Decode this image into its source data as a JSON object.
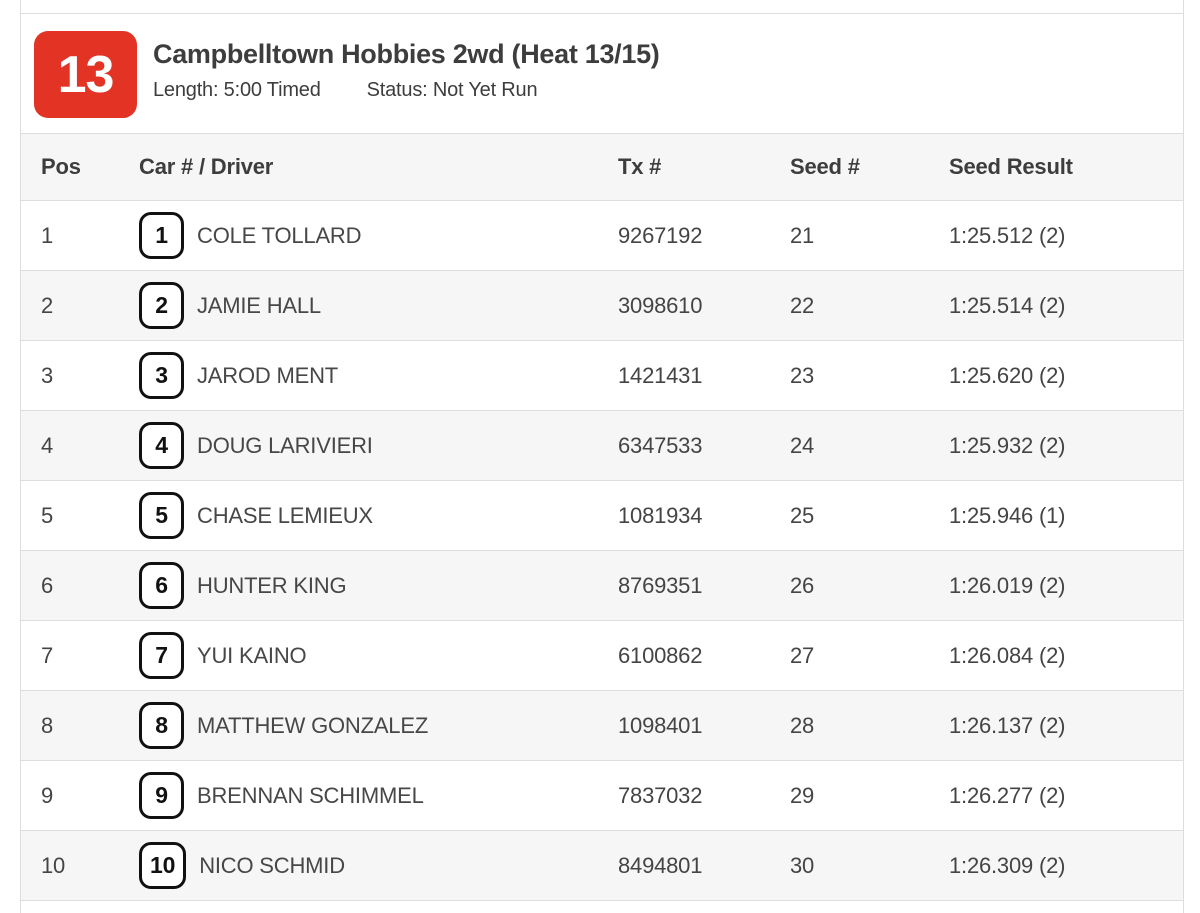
{
  "heat": {
    "number": "13",
    "title": "Campbelltown Hobbies 2wd (Heat 13/15)",
    "length_label": "Length: 5:00 Timed",
    "status_label": "Status: Not Yet Run"
  },
  "table": {
    "columns": {
      "pos": "Pos",
      "driver": "Car # / Driver",
      "tx": "Tx #",
      "seed": "Seed #",
      "result": "Seed Result"
    },
    "rows": [
      {
        "pos": "1",
        "car": "1",
        "driver": "COLE TOLLARD",
        "tx": "9267192",
        "seed": "21",
        "result": "1:25.512 (2)"
      },
      {
        "pos": "2",
        "car": "2",
        "driver": "JAMIE HALL",
        "tx": "3098610",
        "seed": "22",
        "result": "1:25.514 (2)"
      },
      {
        "pos": "3",
        "car": "3",
        "driver": "JAROD MENT",
        "tx": "1421431",
        "seed": "23",
        "result": "1:25.620 (2)"
      },
      {
        "pos": "4",
        "car": "4",
        "driver": "DOUG LARIVIERI",
        "tx": "6347533",
        "seed": "24",
        "result": "1:25.932 (2)"
      },
      {
        "pos": "5",
        "car": "5",
        "driver": "CHASE LEMIEUX",
        "tx": "1081934",
        "seed": "25",
        "result": "1:25.946 (1)"
      },
      {
        "pos": "6",
        "car": "6",
        "driver": "HUNTER KING",
        "tx": "8769351",
        "seed": "26",
        "result": "1:26.019 (2)"
      },
      {
        "pos": "7",
        "car": "7",
        "driver": "YUI KAINO",
        "tx": "6100862",
        "seed": "27",
        "result": "1:26.084 (2)"
      },
      {
        "pos": "8",
        "car": "8",
        "driver": "MATTHEW GONZALEZ",
        "tx": "1098401",
        "seed": "28",
        "result": "1:26.137 (2)"
      },
      {
        "pos": "9",
        "car": "9",
        "driver": "BRENNAN SCHIMMEL",
        "tx": "7837032",
        "seed": "29",
        "result": "1:26.277 (2)"
      },
      {
        "pos": "10",
        "car": "10",
        "driver": "NICO SCHMID",
        "tx": "8494801",
        "seed": "30",
        "result": "1:26.309 (2)"
      }
    ]
  },
  "colors": {
    "accent_red": "#e23325",
    "row_alt_bg": "#f6f6f6",
    "border": "#dddddd"
  }
}
